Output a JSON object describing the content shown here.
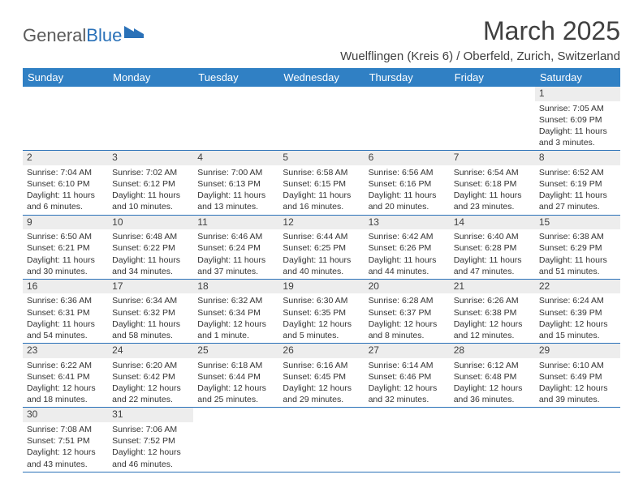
{
  "logo": {
    "part1": "General",
    "part2": "Blue"
  },
  "title": "March 2025",
  "location": "Wuelflingen (Kreis 6) / Oberfeld, Zurich, Switzerland",
  "colors": {
    "header_bg": "#3080c4",
    "header_fg": "#ffffff",
    "border": "#2a71b8",
    "daynum_bg": "#ededed",
    "text": "#404040",
    "logo_gray": "#5a5a5a",
    "logo_blue": "#2a71b8"
  },
  "dayHeaders": [
    "Sunday",
    "Monday",
    "Tuesday",
    "Wednesday",
    "Thursday",
    "Friday",
    "Saturday"
  ],
  "calendar": {
    "startOffset": 6,
    "daysInMonth": 31,
    "days": [
      {
        "n": 1,
        "sunrise": "7:05 AM",
        "sunset": "6:09 PM",
        "daylight": "11 hours and 3 minutes."
      },
      {
        "n": 2,
        "sunrise": "7:04 AM",
        "sunset": "6:10 PM",
        "daylight": "11 hours and 6 minutes."
      },
      {
        "n": 3,
        "sunrise": "7:02 AM",
        "sunset": "6:12 PM",
        "daylight": "11 hours and 10 minutes."
      },
      {
        "n": 4,
        "sunrise": "7:00 AM",
        "sunset": "6:13 PM",
        "daylight": "11 hours and 13 minutes."
      },
      {
        "n": 5,
        "sunrise": "6:58 AM",
        "sunset": "6:15 PM",
        "daylight": "11 hours and 16 minutes."
      },
      {
        "n": 6,
        "sunrise": "6:56 AM",
        "sunset": "6:16 PM",
        "daylight": "11 hours and 20 minutes."
      },
      {
        "n": 7,
        "sunrise": "6:54 AM",
        "sunset": "6:18 PM",
        "daylight": "11 hours and 23 minutes."
      },
      {
        "n": 8,
        "sunrise": "6:52 AM",
        "sunset": "6:19 PM",
        "daylight": "11 hours and 27 minutes."
      },
      {
        "n": 9,
        "sunrise": "6:50 AM",
        "sunset": "6:21 PM",
        "daylight": "11 hours and 30 minutes."
      },
      {
        "n": 10,
        "sunrise": "6:48 AM",
        "sunset": "6:22 PM",
        "daylight": "11 hours and 34 minutes."
      },
      {
        "n": 11,
        "sunrise": "6:46 AM",
        "sunset": "6:24 PM",
        "daylight": "11 hours and 37 minutes."
      },
      {
        "n": 12,
        "sunrise": "6:44 AM",
        "sunset": "6:25 PM",
        "daylight": "11 hours and 40 minutes."
      },
      {
        "n": 13,
        "sunrise": "6:42 AM",
        "sunset": "6:26 PM",
        "daylight": "11 hours and 44 minutes."
      },
      {
        "n": 14,
        "sunrise": "6:40 AM",
        "sunset": "6:28 PM",
        "daylight": "11 hours and 47 minutes."
      },
      {
        "n": 15,
        "sunrise": "6:38 AM",
        "sunset": "6:29 PM",
        "daylight": "11 hours and 51 minutes."
      },
      {
        "n": 16,
        "sunrise": "6:36 AM",
        "sunset": "6:31 PM",
        "daylight": "11 hours and 54 minutes."
      },
      {
        "n": 17,
        "sunrise": "6:34 AM",
        "sunset": "6:32 PM",
        "daylight": "11 hours and 58 minutes."
      },
      {
        "n": 18,
        "sunrise": "6:32 AM",
        "sunset": "6:34 PM",
        "daylight": "12 hours and 1 minute."
      },
      {
        "n": 19,
        "sunrise": "6:30 AM",
        "sunset": "6:35 PM",
        "daylight": "12 hours and 5 minutes."
      },
      {
        "n": 20,
        "sunrise": "6:28 AM",
        "sunset": "6:37 PM",
        "daylight": "12 hours and 8 minutes."
      },
      {
        "n": 21,
        "sunrise": "6:26 AM",
        "sunset": "6:38 PM",
        "daylight": "12 hours and 12 minutes."
      },
      {
        "n": 22,
        "sunrise": "6:24 AM",
        "sunset": "6:39 PM",
        "daylight": "12 hours and 15 minutes."
      },
      {
        "n": 23,
        "sunrise": "6:22 AM",
        "sunset": "6:41 PM",
        "daylight": "12 hours and 18 minutes."
      },
      {
        "n": 24,
        "sunrise": "6:20 AM",
        "sunset": "6:42 PM",
        "daylight": "12 hours and 22 minutes."
      },
      {
        "n": 25,
        "sunrise": "6:18 AM",
        "sunset": "6:44 PM",
        "daylight": "12 hours and 25 minutes."
      },
      {
        "n": 26,
        "sunrise": "6:16 AM",
        "sunset": "6:45 PM",
        "daylight": "12 hours and 29 minutes."
      },
      {
        "n": 27,
        "sunrise": "6:14 AM",
        "sunset": "6:46 PM",
        "daylight": "12 hours and 32 minutes."
      },
      {
        "n": 28,
        "sunrise": "6:12 AM",
        "sunset": "6:48 PM",
        "daylight": "12 hours and 36 minutes."
      },
      {
        "n": 29,
        "sunrise": "6:10 AM",
        "sunset": "6:49 PM",
        "daylight": "12 hours and 39 minutes."
      },
      {
        "n": 30,
        "sunrise": "7:08 AM",
        "sunset": "7:51 PM",
        "daylight": "12 hours and 43 minutes."
      },
      {
        "n": 31,
        "sunrise": "7:06 AM",
        "sunset": "7:52 PM",
        "daylight": "12 hours and 46 minutes."
      }
    ]
  },
  "labels": {
    "sunrise": "Sunrise:",
    "sunset": "Sunset:",
    "daylight": "Daylight:"
  }
}
